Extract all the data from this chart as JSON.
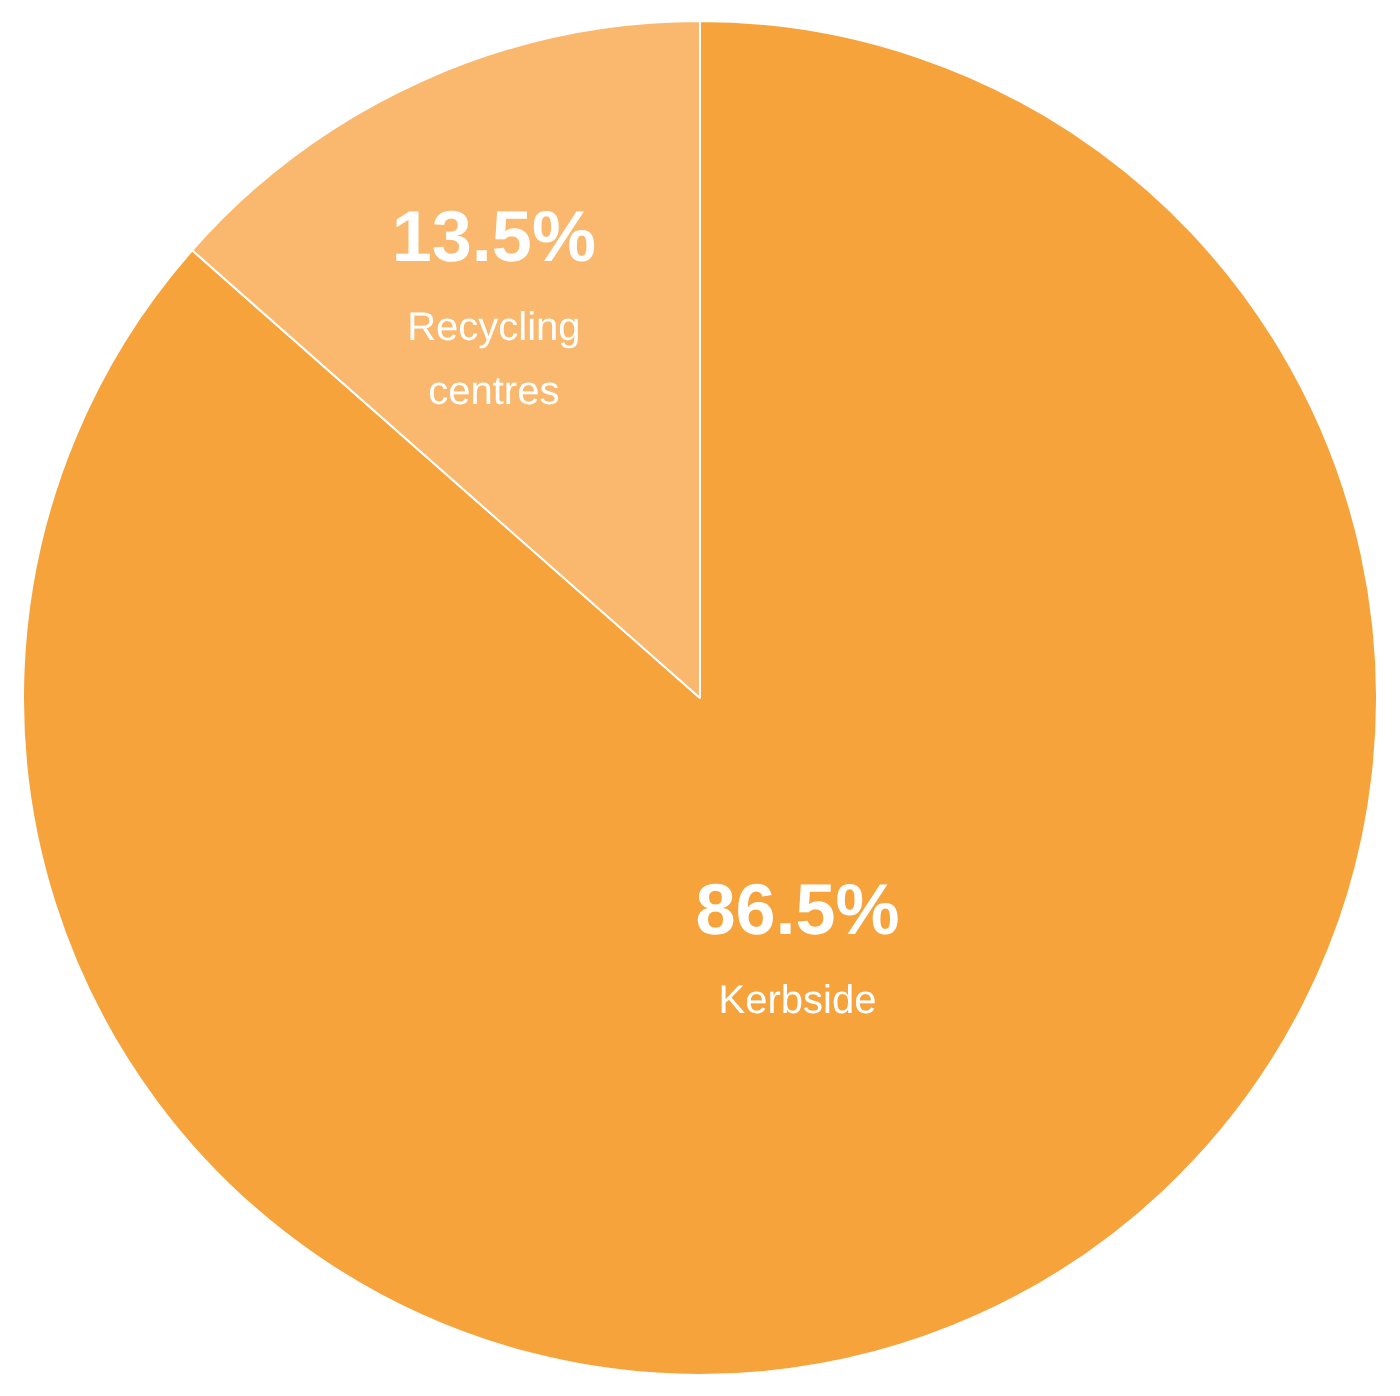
{
  "chart_data": {
    "type": "pie",
    "categories": [
      "Kerbside",
      "Recycling centres"
    ],
    "values": [
      86.5,
      13.5
    ],
    "value_labels": [
      "86.5%",
      "13.5%"
    ],
    "colors": [
      "#f6a33c",
      "#f9b86d"
    ],
    "legend": false
  }
}
